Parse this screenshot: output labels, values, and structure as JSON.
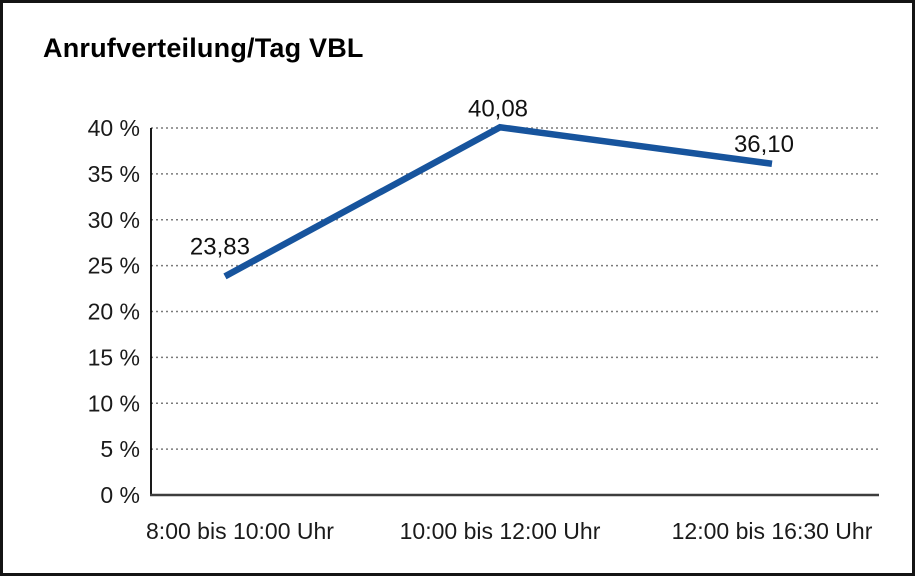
{
  "chart_data": {
    "type": "line",
    "title": "Anrufverteilung/Tag VBL",
    "categories": [
      "8:00 bis 10:00 Uhr",
      "10:00 bis 12:00 Uhr",
      "12:00 bis 16:30 Uhr"
    ],
    "series": [
      {
        "name": "Anrufverteilung",
        "values": [
          23.83,
          40.08,
          36.1
        ],
        "point_labels": [
          "23,83",
          "40,08",
          "36,10"
        ]
      }
    ],
    "xlabel": "",
    "ylabel": "",
    "ylim": [
      0,
      40
    ],
    "ytick_step": 5,
    "ytick_labels": [
      "0 %",
      "5 %",
      "10 %",
      "15 %",
      "20 %",
      "25 %",
      "30 %",
      "35 %",
      "40 %"
    ],
    "grid": "horizontal-dotted",
    "legend": "none",
    "colors": {
      "line": "#17549d",
      "grid": "#7a7a7a",
      "axis": "#000000",
      "baseline": "#3d3d3d",
      "text": "#1a1a1a",
      "border": "#141414"
    }
  }
}
